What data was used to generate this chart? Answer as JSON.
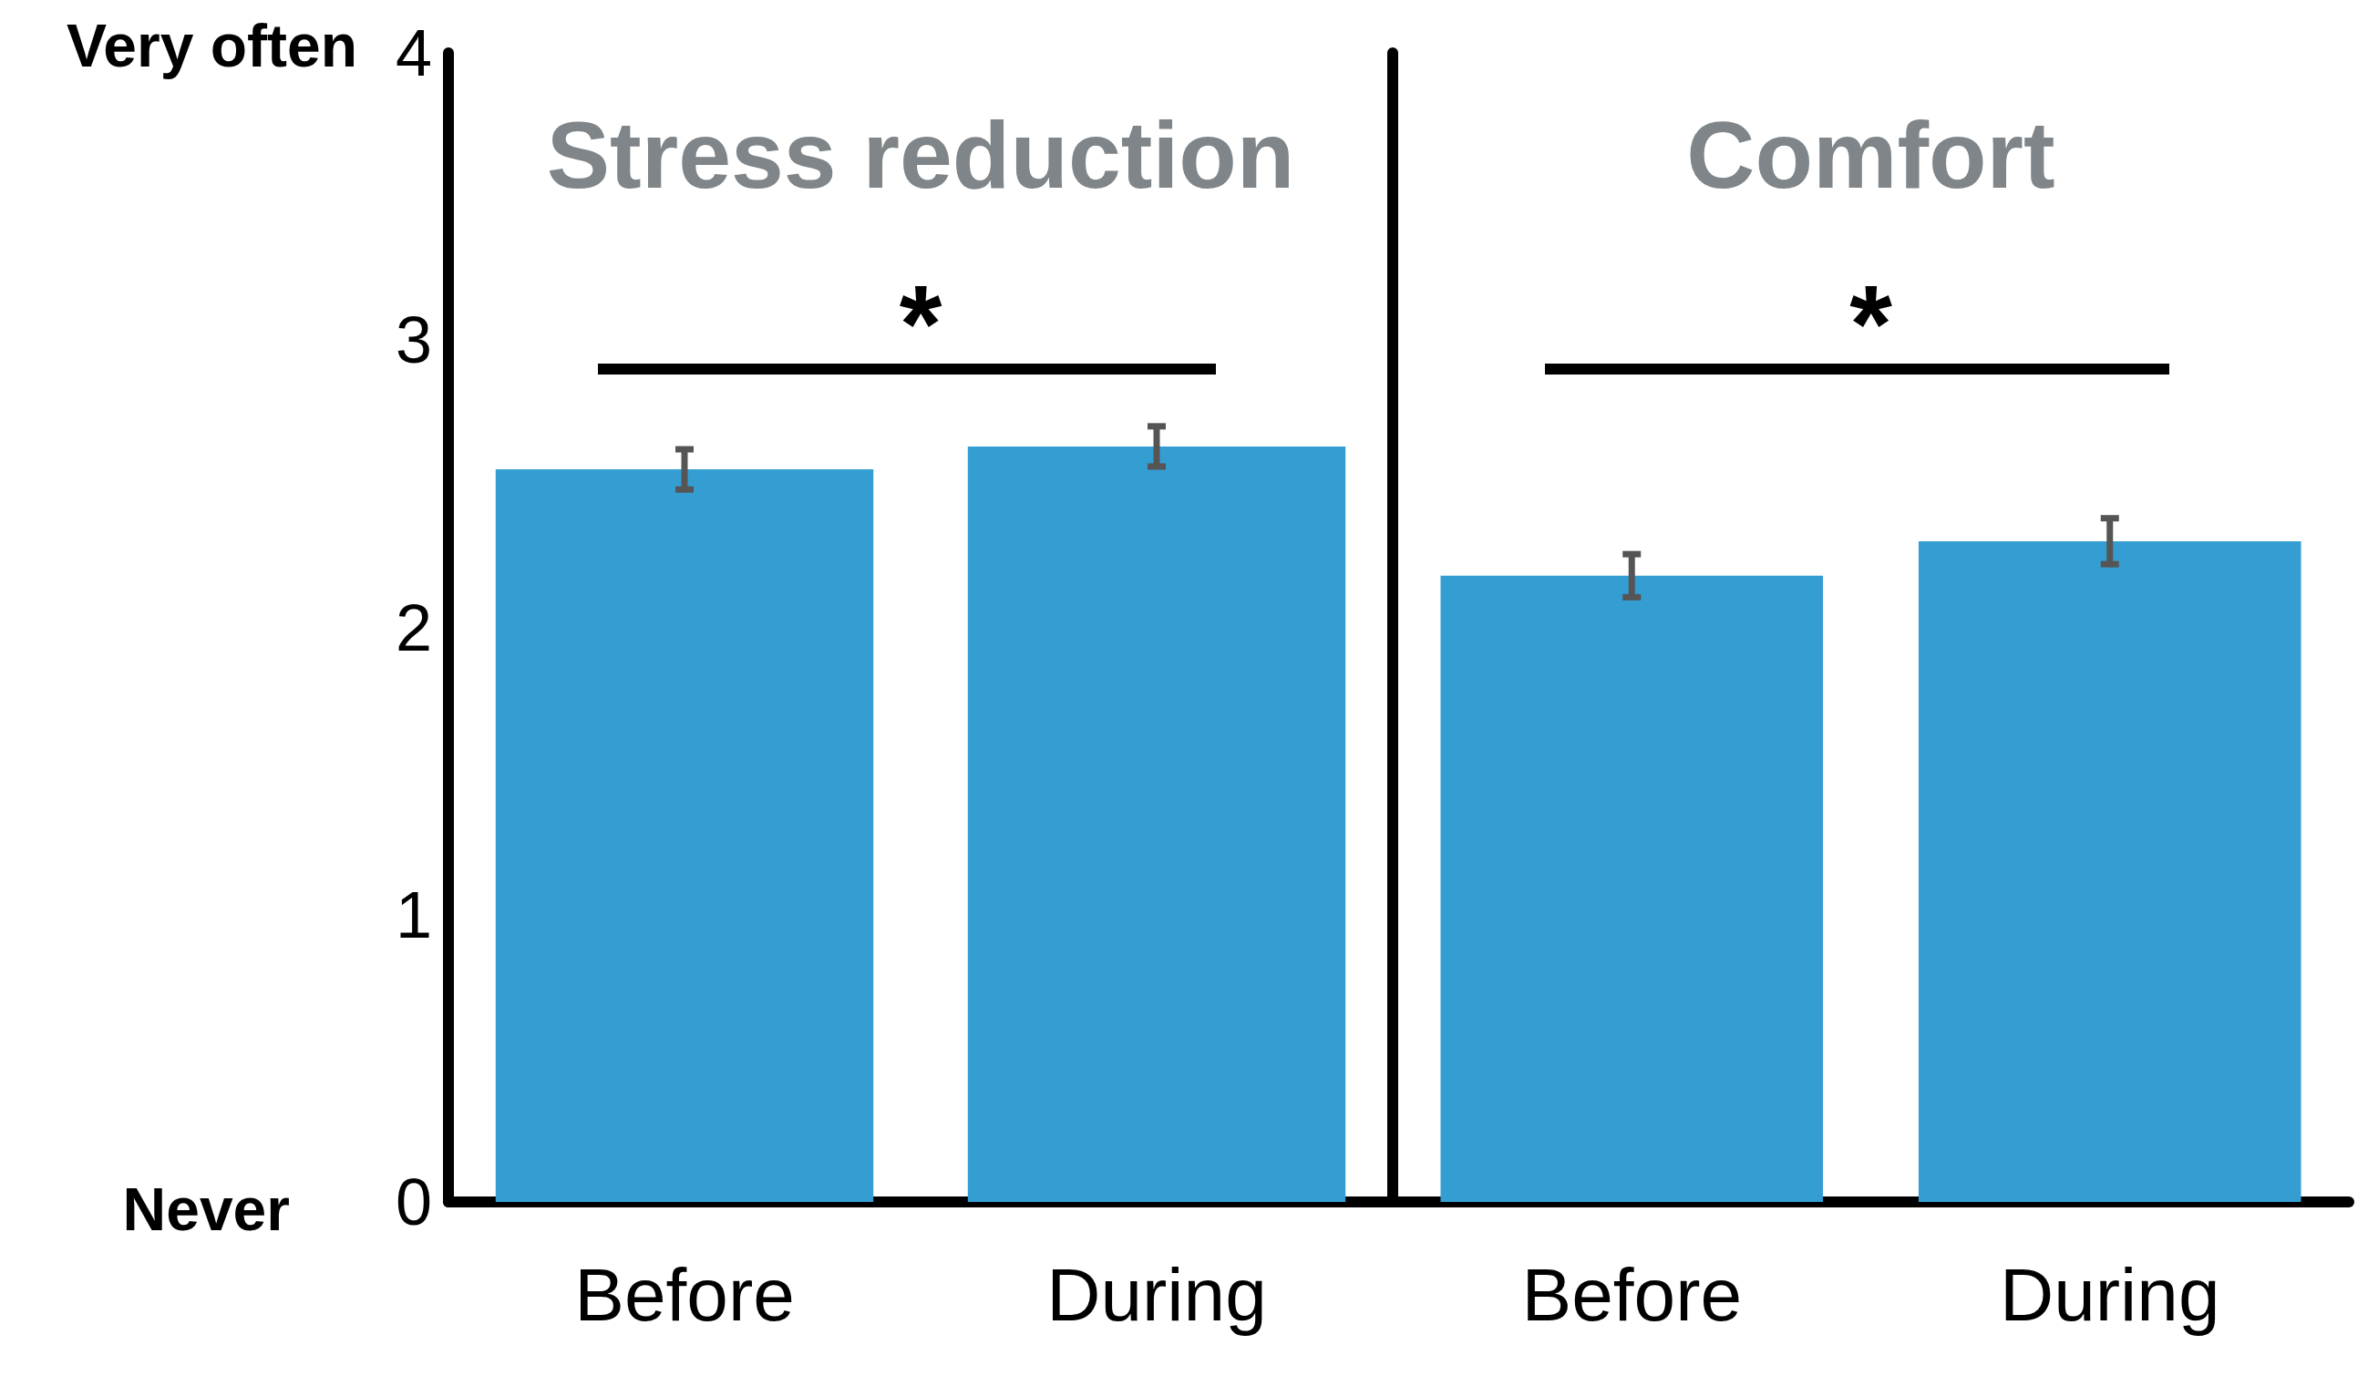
{
  "chart_data": [
    {
      "type": "bar",
      "title": "Stress reduction",
      "categories": [
        "Before",
        "During"
      ],
      "values": [
        2.55,
        2.63
      ],
      "errors": [
        0.07,
        0.07
      ],
      "color": "#349ed3",
      "ylim": [
        0,
        4
      ],
      "yticks": [
        0,
        1,
        2,
        3,
        4
      ],
      "grid": false,
      "annotations": [
        "Very often",
        "Never",
        "*"
      ]
    },
    {
      "type": "bar",
      "title": "Comfort",
      "categories": [
        "Before",
        "During"
      ],
      "values": [
        2.18,
        2.3
      ],
      "errors": [
        0.075,
        0.08
      ],
      "color": "#349ed3",
      "ylim": [
        0,
        4
      ],
      "yticks": [
        0,
        1,
        2,
        3,
        4
      ],
      "grid": false,
      "tick_labels": "x",
      "annotations": [
        "*"
      ]
    }
  ]
}
